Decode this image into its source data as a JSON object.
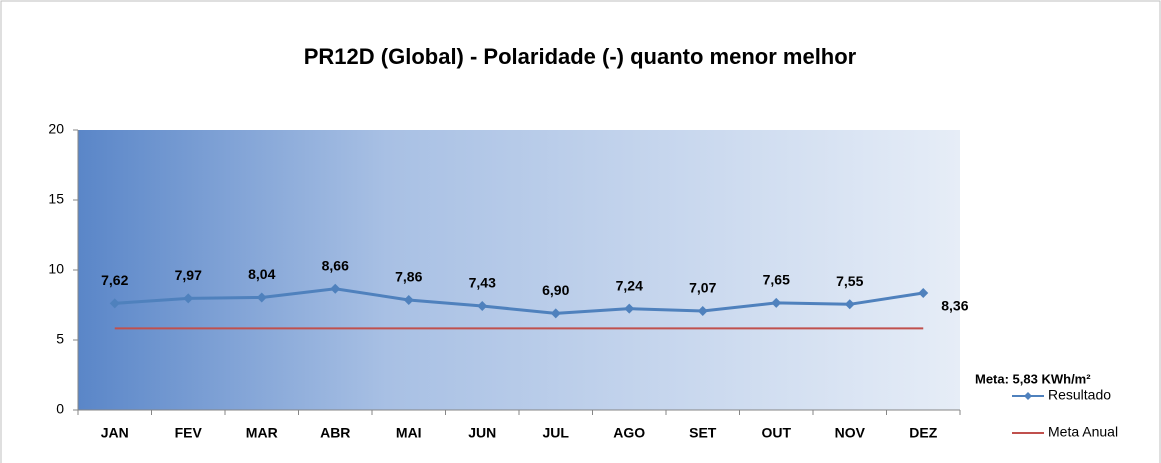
{
  "chart_data": {
    "type": "line",
    "title": "PR12D (Global) - Polaridade (-) quanto menor melhor",
    "categories": [
      "JAN",
      "FEV",
      "MAR",
      "ABR",
      "MAI",
      "JUN",
      "JUL",
      "AGO",
      "SET",
      "OUT",
      "NOV",
      "DEZ"
    ],
    "series": [
      {
        "name": "Resultado",
        "color": "#4f81bd",
        "values": [
          7.62,
          7.97,
          8.04,
          8.66,
          7.86,
          7.43,
          6.9,
          7.24,
          7.07,
          7.65,
          7.55,
          8.36
        ],
        "value_labels": [
          "7,62",
          "7,97",
          "8,04",
          "8,66",
          "7,86",
          "7,43",
          "6,90",
          "7,24",
          "7,07",
          "7,65",
          "7,55",
          "8,36"
        ]
      },
      {
        "name": "Meta Anual",
        "color": "#c0504d",
        "values": [
          5.83,
          5.83,
          5.83,
          5.83,
          5.83,
          5.83,
          5.83,
          5.83,
          5.83,
          5.83,
          5.83,
          5.83
        ]
      }
    ],
    "annotation": "Meta:  5,83 KWh/m²",
    "ylim": [
      0,
      20
    ],
    "yticks": [
      0,
      5,
      10,
      15,
      20
    ],
    "legend": "right"
  }
}
